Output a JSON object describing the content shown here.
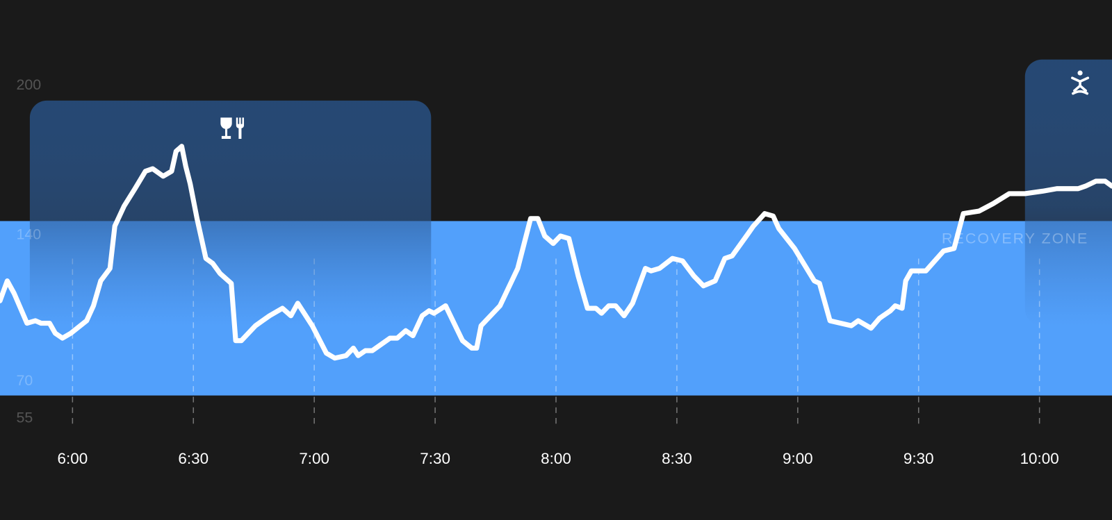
{
  "chart_data": {
    "type": "line",
    "x": [
      342.0,
      343.8,
      345.5,
      348.7,
      350.8,
      352.2,
      354.3,
      355.7,
      357.5,
      359.6,
      363.5,
      365.2,
      367.0,
      369.3,
      370.5,
      372.8,
      375.5,
      378.1,
      379.9,
      382.5,
      384.6,
      385.7,
      387.1,
      388.1,
      389.2,
      390.9,
      393.1,
      394.8,
      396.6,
      399.4,
      400.5,
      401.9,
      405.4,
      408.9,
      412.1,
      414.2,
      415.9,
      419.5,
      423.0,
      425.1,
      427.9,
      429.7,
      430.9,
      432.7,
      434.4,
      438.8,
      440.6,
      442.7,
      444.5,
      446.8,
      448.5,
      449.7,
      452.6,
      454.7,
      456.8,
      459.1,
      460.3,
      461.4,
      466.1,
      470.5,
      473.7,
      475.5,
      477.2,
      479.3,
      481.1,
      483.2,
      485.5,
      487.8,
      489.9,
      491.3,
      493.1,
      494.8,
      496.9,
      499.0,
      502.2,
      503.6,
      505.7,
      508.9,
      511.4,
      514.2,
      516.6,
      519.5,
      521.9,
      523.7,
      527.7,
      529.0,
      531.8,
      533.9,
      535.3,
      539.2,
      544.1,
      545.4,
      548.0,
      553.3,
      555.0,
      558.2,
      560.3,
      563.0,
      564.2,
      565.9,
      566.8,
      568.2,
      571.8,
      576.2,
      578.8,
      581.1,
      585.0,
      588.5,
      592.5,
      596.4,
      600.8,
      604.3,
      607.0,
      609.6,
      611.4,
      614.0,
      616.3,
      618.0
    ],
    "values": [
      108,
      116,
      111,
      99,
      100,
      99,
      99,
      95,
      93,
      95,
      100,
      106,
      116,
      121,
      138,
      146,
      153,
      160,
      161,
      158,
      160,
      168,
      170,
      162,
      155,
      141,
      125,
      123,
      119,
      115,
      92,
      92,
      98,
      102,
      105,
      102,
      107,
      98,
      87,
      85,
      86,
      89,
      86,
      88,
      88,
      93,
      93,
      96,
      94,
      102,
      104,
      103,
      106,
      99,
      92,
      89,
      89,
      98,
      106,
      121,
      141,
      141,
      134,
      131,
      134,
      133,
      118,
      105,
      105,
      103,
      106,
      106,
      102,
      107,
      121,
      120,
      121,
      125,
      124,
      118,
      114,
      116,
      125,
      126,
      135,
      138,
      143,
      142,
      137,
      129,
      116,
      115,
      100,
      98,
      100,
      97,
      101,
      104,
      106,
      105,
      116,
      120,
      120,
      128,
      129,
      143,
      144,
      147,
      151,
      151,
      152,
      153,
      153,
      153,
      154,
      156,
      156,
      154
    ],
    "color": "#ffffff",
    "xlim": [
      342,
      618
    ],
    "xticks": [
      {
        "value": 360,
        "label": "6:00"
      },
      {
        "value": 390,
        "label": "6:30"
      },
      {
        "value": 420,
        "label": "7:00"
      },
      {
        "value": 450,
        "label": "7:30"
      },
      {
        "value": 480,
        "label": "8:00"
      },
      {
        "value": 510,
        "label": "8:30"
      },
      {
        "value": 540,
        "label": "9:00"
      },
      {
        "value": 570,
        "label": "9:30"
      },
      {
        "value": 600,
        "label": "10:00"
      }
    ],
    "ylim": [
      55,
      200
    ],
    "yticks": [
      200,
      140,
      70,
      55
    ],
    "zone": {
      "label": "RECOVERY ZONE",
      "range": [
        70,
        140
      ],
      "color": "#52a0fb"
    },
    "events": [
      {
        "start": 349.4,
        "end": 449.0
      },
      {
        "start": 596.4,
        "end": 618
      }
    ]
  }
}
